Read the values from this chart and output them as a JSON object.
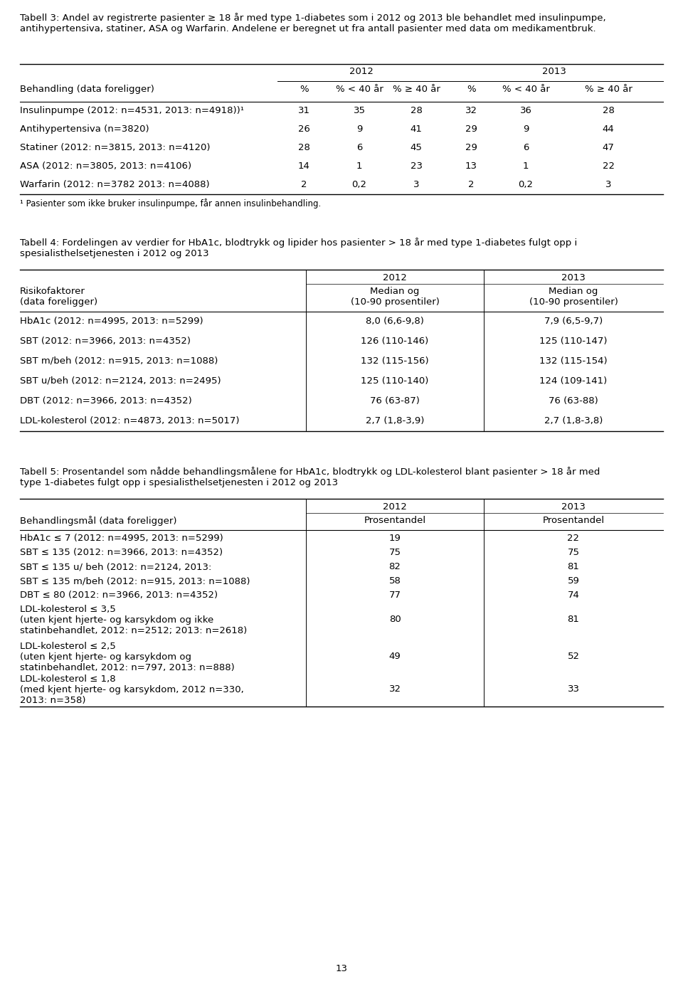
{
  "title3": "Tabell 3: Andel av registrerte pasienter ≥ 18 år med type 1-diabetes som i 2012 og 2013 ble behandlet med insulinpumpe,\nantihypertensiva, statiner, ASA og Warfarin. Andelene er beregnet ut fra antall pasienter med data om medikamentbruk.",
  "title4": "Tabell 4: Fordelingen av verdier for HbA1c, blodtrykk og lipider hos pasienter > 18 år med type 1-diabetes fulgt opp i\nspesialisthelsetjenesten i 2012 og 2013",
  "title5": "Tabell 5: Prosentandel som nådde behandlingsmålene for HbA1c, blodtrykk og LDL-kolesterol blant pasienter > 18 år med\ntype 1-diabetes fulgt opp i spesialisthelsetjenesten i 2012 og 2013",
  "page_number": "13",
  "table3_header_row1": [
    "",
    "2012",
    "",
    "",
    "2013",
    "",
    ""
  ],
  "table3_header_row2": [
    "Behandling (data foreligger)",
    "%",
    "% < 40 år",
    "% ≥ 40 år",
    "%",
    "% < 40 år",
    "% ≥ 40 år"
  ],
  "table3_rows": [
    [
      "Insulinpumpe (2012: n=4531, 2013: n=4918))¹",
      "31",
      "35",
      "28",
      "32",
      "36",
      "28"
    ],
    [
      "Antihypertensiva (n=3820)",
      "26",
      "9",
      "41",
      "29",
      "9",
      "44"
    ],
    [
      "Statiner (2012: n=3815, 2013: n=4120)",
      "28",
      "6",
      "45",
      "29",
      "6",
      "47"
    ],
    [
      "ASA (2012: n=3805, 2013: n=4106)",
      "14",
      "1",
      "23",
      "13",
      "1",
      "22"
    ],
    [
      "Warfarin (2012: n=3782 2013: n=4088)",
      "2",
      "0,2",
      "3",
      "2",
      "0,2",
      "3"
    ]
  ],
  "table3_footnote": "¹ Pasienter som ikke bruker insulinpumpe, får annen insulinbehandling.",
  "table4_header_row1": [
    "",
    "2012",
    "2013"
  ],
  "table4_header_row2": [
    "Risikofaktorer\n(data foreligger)",
    "Median og\n(10-90 prosentiler)",
    "Median og\n(10-90 prosentiler)"
  ],
  "table4_rows": [
    [
      "HbA1c (2012: n=4995, 2013: n=5299)",
      "8,0 (6,6-9,8)",
      "7,9 (6,5-9,7)"
    ],
    [
      "SBT (2012: n=3966, 2013: n=4352)",
      "126 (110-146)",
      "125 (110-147)"
    ],
    [
      "SBT m/beh (2012: n=915, 2013: n=1088)",
      "132 (115-156)",
      "132 (115-154)"
    ],
    [
      "SBT u/beh (2012: n=2124, 2013: n=2495)",
      "125 (110-140)",
      "124 (109-141)"
    ],
    [
      "DBT (2012: n=3966, 2013: n=4352)",
      "76 (63-87)",
      "76 (63-88)"
    ],
    [
      "LDL-kolesterol (2012: n=4873, 2013: n=5017)",
      "2,7 (1,8-3,9)",
      "2,7 (1,8-3,8)"
    ]
  ],
  "table5_header_row1": [
    "",
    "2012",
    "2013"
  ],
  "table5_header_row2": [
    "Behandlingsmål (data foreligger)",
    "Prosentandel",
    "Prosentandel"
  ],
  "table5_rows": [
    [
      "HbA1c ≤ 7 (2012: n=4995, 2013: n=5299)",
      "19",
      "22"
    ],
    [
      "SBT ≤ 135 (2012: n=3966, 2013: n=4352)",
      "75",
      "75"
    ],
    [
      "SBT ≤ 135 u/ beh (2012: n=2124, 2013:",
      "82",
      "81"
    ],
    [
      "SBT ≤ 135 m/beh (2012: n=915, 2013: n=1088)",
      "58",
      "59"
    ],
    [
      "DBT ≤ 80 (2012: n=3966, 2013: n=4352)",
      "77",
      "74"
    ],
    [
      "LDL-kolesterol ≤ 3,5\n(uten kjent hjerte- og karsykdom og ikke\nstatinbehandlet, 2012: n=2512; 2013: n=2618)",
      "80",
      "81"
    ],
    [
      "LDL-kolesterol ≤ 2,5\n(uten kjent hjerte- og karsykdom og\nstatinbehandlet, 2012: n=797, 2013: n=888)",
      "49",
      "52"
    ],
    [
      "LDL-kolesterol ≤ 1,8\n(med kjent hjerte- og karsykdom, 2012 n=330,\n2013: n=358)",
      "32",
      "33"
    ]
  ],
  "bg_color": "#ffffff",
  "text_color": "#000000",
  "font_family": "DejaVu Sans",
  "body_fontsize": 9.5,
  "small_fontsize": 8.5,
  "title_fontsize": 9.5,
  "header_fontsize": 9.5
}
